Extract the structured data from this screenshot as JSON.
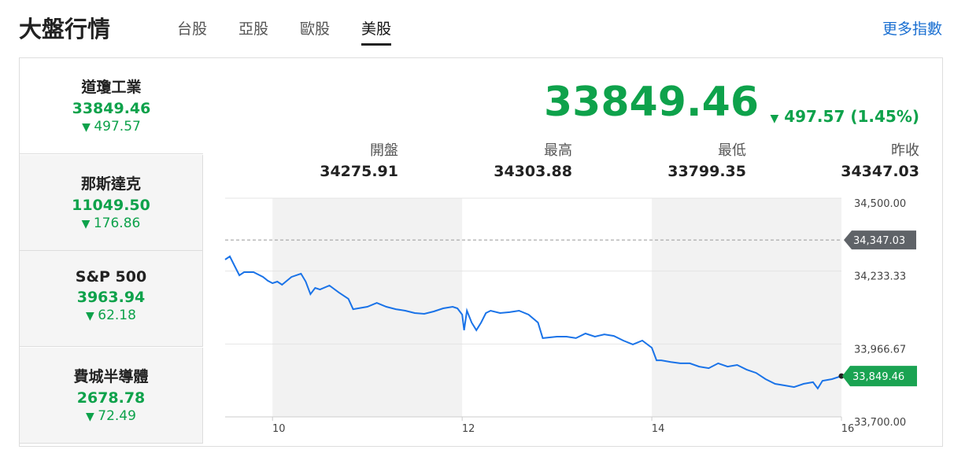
{
  "header": {
    "title": "大盤行情",
    "tabs": [
      "台股",
      "亞股",
      "歐股",
      "美股"
    ],
    "active_tab": 3,
    "more_link": "更多指數"
  },
  "indices": {
    "selected_index": 0,
    "items": [
      {
        "name": "道瓊工業",
        "value": "33849.46",
        "change": "497.57"
      },
      {
        "name": "那斯達克",
        "value": "11049.50",
        "change": "176.86"
      },
      {
        "name": "S&P 500",
        "value": "3963.94",
        "change": "62.18"
      },
      {
        "name": "費城半導體",
        "value": "2678.78",
        "change": "72.49"
      }
    ]
  },
  "quote": {
    "value": "33849.46",
    "change": "497.57 (1.45%)",
    "stats": [
      {
        "label": "開盤",
        "value": "34275.91"
      },
      {
        "label": "最高",
        "value": "34303.88"
      },
      {
        "label": "最低",
        "value": "33799.35"
      },
      {
        "label": "昨收",
        "value": "34347.03"
      }
    ]
  },
  "chart_data": {
    "type": "line",
    "color": "#1a73e8",
    "x": [
      9.5,
      9.55,
      9.6,
      9.65,
      9.7,
      9.8,
      9.9,
      9.95,
      10.0,
      10.05,
      10.1,
      10.2,
      10.3,
      10.35,
      10.4,
      10.45,
      10.5,
      10.6,
      10.7,
      10.8,
      10.85,
      11.0,
      11.1,
      11.2,
      11.3,
      11.4,
      11.5,
      11.6,
      11.7,
      11.8,
      11.9,
      11.95,
      12.0,
      12.02,
      12.05,
      12.1,
      12.15,
      12.2,
      12.25,
      12.3,
      12.4,
      12.5,
      12.6,
      12.7,
      12.8,
      12.85,
      13.0,
      13.1,
      13.2,
      13.3,
      13.4,
      13.5,
      13.6,
      13.7,
      13.8,
      13.9,
      14.0,
      14.05,
      14.1,
      14.2,
      14.3,
      14.4,
      14.5,
      14.6,
      14.7,
      14.8,
      14.9,
      15.0,
      15.1,
      15.2,
      15.3,
      15.4,
      15.5,
      15.6,
      15.7,
      15.75,
      15.8,
      15.9,
      16.0
    ],
    "values": [
      34275.5,
      34287,
      34252.5,
      34218,
      34229.5,
      34229.5,
      34212,
      34198,
      34189,
      34195,
      34183.5,
      34212,
      34224,
      34195,
      34149,
      34172,
      34166,
      34180.5,
      34155,
      34132,
      34094,
      34103,
      34117,
      34103,
      34094,
      34088.5,
      34080,
      34077,
      34085.6,
      34097,
      34103,
      34097,
      34074,
      34017,
      34088.5,
      34045,
      34017,
      34045,
      34080,
      34088.5,
      34080,
      34083,
      34088.5,
      34074,
      34045,
      33988,
      33993.5,
      33993.5,
      33988,
      34005,
      33993.5,
      34002,
      33996,
      33979,
      33965,
      33979,
      33953,
      33907,
      33907,
      33901,
      33896,
      33896,
      33884,
      33878,
      33896,
      33884,
      33890,
      33873,
      33861,
      33838,
      33821,
      33815,
      33809,
      33821,
      33827,
      33804,
      33832,
      33838,
      33849.46
    ],
    "xlim": [
      9.5,
      16
    ],
    "xticks": [
      10,
      12,
      14,
      16
    ],
    "ylim": [
      33700,
      34500
    ],
    "yticks": [
      {
        "value": 33700,
        "label": "33,700.00"
      },
      {
        "value": 33966.67,
        "label": "33,966.67"
      },
      {
        "value": 34233.33,
        "label": "34,233.33"
      },
      {
        "value": 34500,
        "label": "34,500.00"
      }
    ],
    "grid": true,
    "reference_line": {
      "value": 34347.03,
      "label": "34,347.03"
    },
    "last_label": "33,849.46"
  }
}
